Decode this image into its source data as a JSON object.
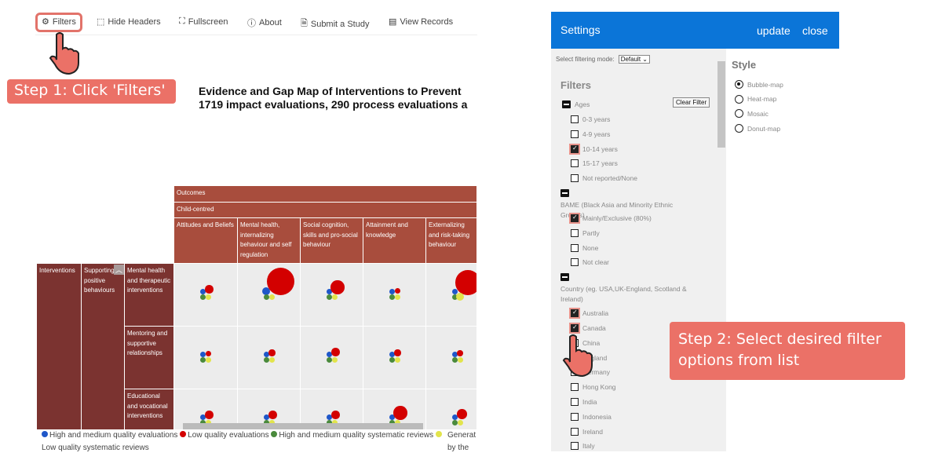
{
  "toolbar": {
    "filters": "Filters",
    "hide_headers": "Hide Headers",
    "fullscreen": "Fullscreen",
    "about": "About",
    "submit": "Submit a Study",
    "view_records": "View Records"
  },
  "callouts": {
    "step1": "Step 1: Click 'Filters'",
    "step2": "Step 2: Select desired filter options from list"
  },
  "title": {
    "line1": "Evidence and Gap Map of Interventions to Prevent",
    "line2": "1719 impact evaluations, 290 process evaluations a"
  },
  "map": {
    "outcomes": "Outcomes",
    "child_centred": "Child-centred",
    "columns": [
      "Attitudes and Beliefs",
      "Mental health, internalizing behaviour and self regulation",
      "Social cognition, skills and pro-social behaviour",
      "Attainment and knowledge",
      "Externalizing and risk-taking behaviour"
    ],
    "interventions": "Interventions",
    "supporting": "Supporting positive behaviours",
    "rows": [
      "Mental health and therapeutic interventions",
      "Mentoring and supportive relationships",
      "Educational and vocational interventions"
    ]
  },
  "chart_data": {
    "type": "bubble",
    "categories": [
      "blue",
      "red",
      "green",
      "yellow"
    ],
    "cells": [
      [
        [
          1,
          1.5,
          1,
          1
        ],
        [
          1.5,
          5,
          1,
          1
        ],
        [
          1,
          2.5,
          1,
          1
        ],
        [
          1,
          1,
          1,
          1
        ],
        [
          1,
          4.5,
          1,
          1.5
        ]
      ],
      [
        [
          1,
          1,
          1,
          1
        ],
        [
          1,
          1.2,
          1,
          1
        ],
        [
          1,
          1.5,
          1,
          1
        ],
        [
          1,
          1.2,
          1,
          1
        ],
        [
          1,
          1.1,
          1,
          1
        ]
      ],
      [
        [
          1,
          1.5,
          1,
          1
        ],
        [
          1,
          1.5,
          1,
          1
        ],
        [
          1,
          1.5,
          1,
          1
        ],
        [
          1,
          2.5,
          1,
          1
        ],
        [
          1,
          1.8,
          1,
          1
        ]
      ]
    ]
  },
  "colors": {
    "blue": "#1f57c9",
    "red": "#d30000",
    "green": "#4a8a3c",
    "yellow": "#e2e44b",
    "header": "#a84d3d",
    "rowheader": "#7b3330",
    "settings": "#0b75d8",
    "callout": "#eb7167"
  },
  "legend": {
    "blue": "High and medium quality evaluations",
    "red": "Low quality evaluations",
    "green": "High and medium quality systematic reviews",
    "yellow": "Low quality systematic reviews",
    "side1": "Generat",
    "side2": "by the"
  },
  "settings": {
    "title": "Settings",
    "update": "update",
    "close": "close",
    "mode_label": "Select filtering mode:",
    "mode_value": "Default",
    "filters_heading": "Filters",
    "clear": "Clear Filter",
    "style_heading": "Style",
    "styles": [
      {
        "label": "Bubble-map",
        "on": true
      },
      {
        "label": "Heat-map",
        "on": false
      },
      {
        "label": "Mosaic",
        "on": false
      },
      {
        "label": "Donut-map",
        "on": false
      }
    ],
    "groups": [
      {
        "label": "Ages",
        "items": [
          {
            "label": "0-3 years",
            "on": false
          },
          {
            "label": "4-9 years",
            "on": false
          },
          {
            "label": "10-14 years",
            "on": true
          },
          {
            "label": "15-17 years",
            "on": false
          },
          {
            "label": "Not reported/None",
            "on": false
          }
        ]
      },
      {
        "label": "BAME (Black Asia and Minority Ethnic Groups)",
        "items": [
          {
            "label": "Mainly/Exclusive (80%)",
            "on": true
          },
          {
            "label": "Partly",
            "on": false
          },
          {
            "label": "None",
            "on": false
          },
          {
            "label": "Not clear",
            "on": false
          }
        ]
      },
      {
        "label": "Country (eg. USA,UK-England, Scotland & Ireland)",
        "items": [
          {
            "label": "Australia",
            "on": true
          },
          {
            "label": "Canada",
            "on": true
          },
          {
            "label": "China",
            "on": false
          },
          {
            "label": "England",
            "on": false
          },
          {
            "label": "Germany",
            "on": false
          },
          {
            "label": "Hong Kong",
            "on": false
          },
          {
            "label": "India",
            "on": false
          },
          {
            "label": "Indonesia",
            "on": false
          },
          {
            "label": "Ireland",
            "on": false
          },
          {
            "label": "Italy",
            "on": false
          }
        ]
      }
    ]
  }
}
